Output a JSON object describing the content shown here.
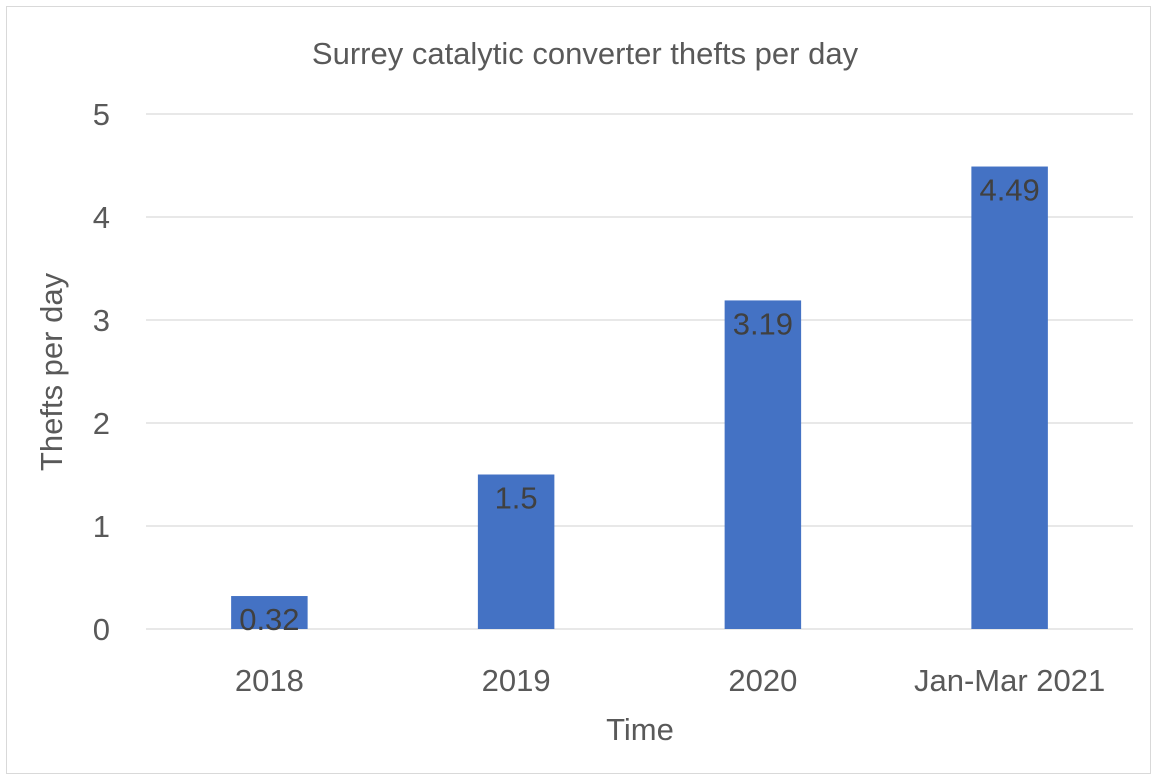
{
  "chart_data": {
    "type": "bar",
    "title": "Surrey catalytic converter thefts per day",
    "xlabel": "Time",
    "ylabel": "Thefts per day",
    "categories": [
      "2018",
      "2019",
      "2020",
      "Jan-Mar 2021"
    ],
    "values": [
      0.32,
      1.5,
      3.19,
      4.49
    ],
    "data_labels": [
      "0.32",
      "1.5",
      "3.19",
      "4.49"
    ],
    "ylim": [
      0,
      5
    ],
    "yticks": [
      0,
      1,
      2,
      3,
      4,
      5
    ],
    "ytick_labels": [
      "0",
      "1",
      "2",
      "3",
      "4",
      "5"
    ],
    "grid": true,
    "legend": "none",
    "bar_color": "#4472C4"
  }
}
